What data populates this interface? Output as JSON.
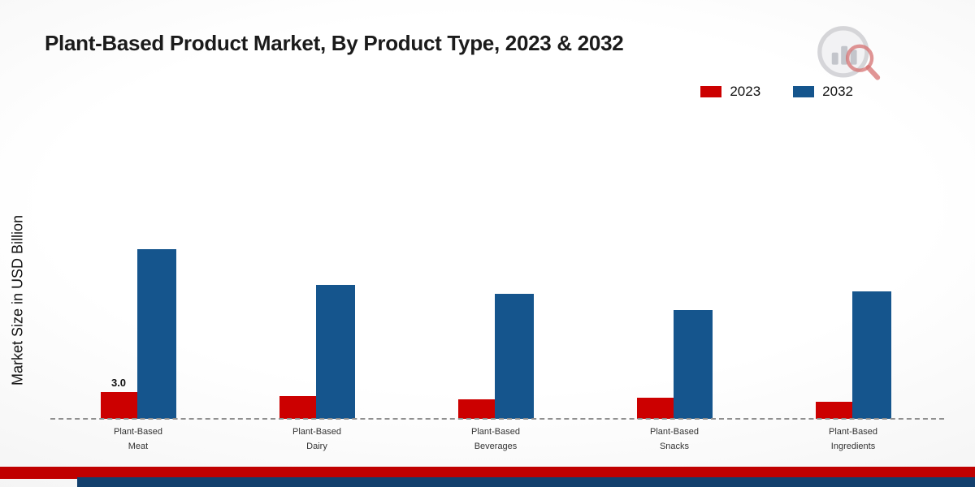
{
  "header": {
    "title": "Plant-Based Product Market, By Product Type, 2023 & 2032"
  },
  "chart_data": {
    "type": "bar",
    "title": "Plant-Based Product Market, By Product Type, 2023 & 2032",
    "xlabel": "",
    "ylabel": "Market Size in USD Billion",
    "ylim": [
      0,
      20
    ],
    "grid": false,
    "legend_position": "top-right",
    "categories": [
      "Plant-Based\nMeat",
      "Plant-Based\nDairy",
      "Plant-Based\nBeverages",
      "Plant-Based\nSnacks",
      "Plant-Based\nIngredients"
    ],
    "series": [
      {
        "name": "2023",
        "color": "#cc0000",
        "values": [
          3.0,
          2.5,
          2.2,
          2.4,
          1.9
        ]
      },
      {
        "name": "2032",
        "color": "#15558d",
        "values": [
          19.0,
          15.0,
          14.0,
          12.2,
          14.3
        ]
      }
    ],
    "annotations": [
      {
        "series": 0,
        "category_index": 0,
        "text": "3.0"
      }
    ]
  },
  "colors": {
    "footer_red": "#c00000",
    "footer_navy": "#123f6d",
    "axis_dash": "#8f8f8f"
  }
}
